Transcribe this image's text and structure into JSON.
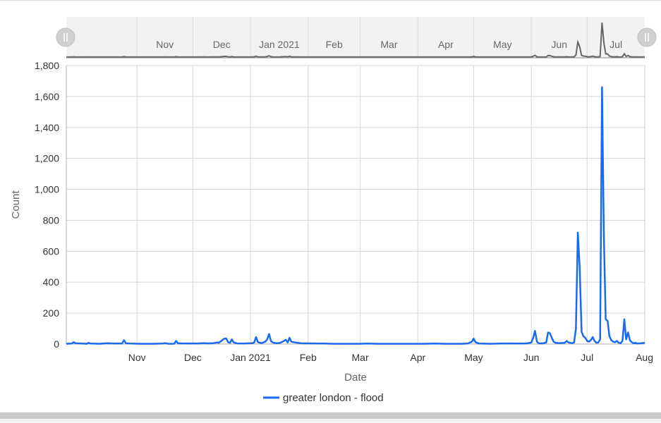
{
  "chart_data": {
    "type": "line",
    "title": "",
    "xlabel": "Date",
    "ylabel": "Count",
    "ylim": [
      0,
      1800
    ],
    "xlim": [
      "2020-09-24",
      "2021-08-01"
    ],
    "grid": true,
    "legend_position": "bottom-center",
    "yticks": [
      {
        "value": 0,
        "label": "0"
      },
      {
        "value": 200,
        "label": "200"
      },
      {
        "value": 400,
        "label": "400"
      },
      {
        "value": 600,
        "label": "600"
      },
      {
        "value": 800,
        "label": "800"
      },
      {
        "value": 1000,
        "label": "1,000"
      },
      {
        "value": 1200,
        "label": "1,200"
      },
      {
        "value": 1400,
        "label": "1,400"
      },
      {
        "value": 1600,
        "label": "1,600"
      },
      {
        "value": 1800,
        "label": "1,800"
      }
    ],
    "xticks": [
      {
        "date": "2020-11-01",
        "label": "Nov"
      },
      {
        "date": "2020-12-01",
        "label": "Dec"
      },
      {
        "date": "2021-01-01",
        "label": "Jan 2021"
      },
      {
        "date": "2021-02-01",
        "label": "Feb"
      },
      {
        "date": "2021-03-01",
        "label": "Mar"
      },
      {
        "date": "2021-04-01",
        "label": "Apr"
      },
      {
        "date": "2021-05-01",
        "label": "May"
      },
      {
        "date": "2021-06-01",
        "label": "Jun"
      },
      {
        "date": "2021-07-01",
        "label": "Jul"
      },
      {
        "date": "2021-08-01",
        "label": "Aug"
      }
    ],
    "navigator": {
      "labels": [
        "Nov",
        "Dec",
        "Jan 2021",
        "Feb",
        "Mar",
        "Apr",
        "May",
        "Jun",
        "Jul"
      ],
      "line_color": "#666666"
    },
    "series": [
      {
        "name": "greater london - flood",
        "color": "#1a6af0",
        "points": [
          [
            "2020-09-24",
            2
          ],
          [
            "2020-09-27",
            3
          ],
          [
            "2020-09-28",
            12
          ],
          [
            "2020-09-29",
            5
          ],
          [
            "2020-10-02",
            3
          ],
          [
            "2020-10-05",
            2
          ],
          [
            "2020-10-06",
            8
          ],
          [
            "2020-10-07",
            3
          ],
          [
            "2020-10-12",
            2
          ],
          [
            "2020-10-16",
            5
          ],
          [
            "2020-10-20",
            3
          ],
          [
            "2020-10-24",
            3
          ],
          [
            "2020-10-25",
            25
          ],
          [
            "2020-10-26",
            5
          ],
          [
            "2020-10-28",
            3
          ],
          [
            "2020-11-03",
            2
          ],
          [
            "2020-11-10",
            2
          ],
          [
            "2020-11-15",
            3
          ],
          [
            "2020-11-16",
            6
          ],
          [
            "2020-11-18",
            2
          ],
          [
            "2020-11-21",
            2
          ],
          [
            "2020-11-22",
            20
          ],
          [
            "2020-11-23",
            5
          ],
          [
            "2020-11-26",
            3
          ],
          [
            "2020-11-30",
            4
          ],
          [
            "2020-12-03",
            3
          ],
          [
            "2020-12-07",
            6
          ],
          [
            "2020-12-09",
            4
          ],
          [
            "2020-12-12",
            6
          ],
          [
            "2020-12-14",
            10
          ],
          [
            "2020-12-15",
            8
          ],
          [
            "2020-12-18",
            35
          ],
          [
            "2020-12-19",
            35
          ],
          [
            "2020-12-20",
            12
          ],
          [
            "2020-12-21",
            8
          ],
          [
            "2020-12-22",
            30
          ],
          [
            "2020-12-23",
            10
          ],
          [
            "2020-12-25",
            4
          ],
          [
            "2020-12-28",
            3
          ],
          [
            "2021-01-02",
            6
          ],
          [
            "2021-01-03",
            10
          ],
          [
            "2021-01-04",
            45
          ],
          [
            "2021-01-05",
            12
          ],
          [
            "2021-01-07",
            6
          ],
          [
            "2021-01-09",
            15
          ],
          [
            "2021-01-10",
            30
          ],
          [
            "2021-01-11",
            65
          ],
          [
            "2021-01-12",
            20
          ],
          [
            "2021-01-13",
            10
          ],
          [
            "2021-01-15",
            5
          ],
          [
            "2021-01-17",
            8
          ],
          [
            "2021-01-19",
            20
          ],
          [
            "2021-01-20",
            28
          ],
          [
            "2021-01-21",
            10
          ],
          [
            "2021-01-22",
            40
          ],
          [
            "2021-01-23",
            15
          ],
          [
            "2021-01-25",
            10
          ],
          [
            "2021-01-28",
            5
          ],
          [
            "2021-02-02",
            4
          ],
          [
            "2021-02-07",
            3
          ],
          [
            "2021-02-10",
            3
          ],
          [
            "2021-02-14",
            2
          ],
          [
            "2021-02-20",
            2
          ],
          [
            "2021-02-25",
            2
          ],
          [
            "2021-03-01",
            2
          ],
          [
            "2021-03-05",
            3
          ],
          [
            "2021-03-10",
            2
          ],
          [
            "2021-03-15",
            2
          ],
          [
            "2021-03-20",
            2
          ],
          [
            "2021-03-25",
            2
          ],
          [
            "2021-03-30",
            2
          ],
          [
            "2021-04-05",
            2
          ],
          [
            "2021-04-10",
            3
          ],
          [
            "2021-04-15",
            2
          ],
          [
            "2021-04-20",
            2
          ],
          [
            "2021-04-25",
            2
          ],
          [
            "2021-04-28",
            4
          ],
          [
            "2021-04-30",
            15
          ],
          [
            "2021-05-01",
            35
          ],
          [
            "2021-05-02",
            12
          ],
          [
            "2021-05-04",
            3
          ],
          [
            "2021-05-10",
            2
          ],
          [
            "2021-05-15",
            3
          ],
          [
            "2021-05-20",
            4
          ],
          [
            "2021-05-25",
            3
          ],
          [
            "2021-05-28",
            3
          ],
          [
            "2021-05-30",
            5
          ],
          [
            "2021-06-01",
            10
          ],
          [
            "2021-06-02",
            40
          ],
          [
            "2021-06-03",
            85
          ],
          [
            "2021-06-04",
            15
          ],
          [
            "2021-06-05",
            5
          ],
          [
            "2021-06-07",
            4
          ],
          [
            "2021-06-09",
            10
          ],
          [
            "2021-06-10",
            75
          ],
          [
            "2021-06-11",
            70
          ],
          [
            "2021-06-12",
            40
          ],
          [
            "2021-06-13",
            15
          ],
          [
            "2021-06-14",
            8
          ],
          [
            "2021-06-16",
            6
          ],
          [
            "2021-06-19",
            8
          ],
          [
            "2021-06-20",
            20
          ],
          [
            "2021-06-21",
            10
          ],
          [
            "2021-06-23",
            6
          ],
          [
            "2021-06-24",
            10
          ],
          [
            "2021-06-25",
            100
          ],
          [
            "2021-06-26",
            720
          ],
          [
            "2021-06-27",
            500
          ],
          [
            "2021-06-28",
            80
          ],
          [
            "2021-06-29",
            50
          ],
          [
            "2021-06-30",
            40
          ],
          [
            "2021-07-01",
            20
          ],
          [
            "2021-07-02",
            15
          ],
          [
            "2021-07-03",
            25
          ],
          [
            "2021-07-04",
            45
          ],
          [
            "2021-07-05",
            20
          ],
          [
            "2021-07-06",
            8
          ],
          [
            "2021-07-07",
            10
          ],
          [
            "2021-07-08",
            30
          ],
          [
            "2021-07-09",
            1660
          ],
          [
            "2021-07-10",
            700
          ],
          [
            "2021-07-11",
            160
          ],
          [
            "2021-07-12",
            150
          ],
          [
            "2021-07-13",
            50
          ],
          [
            "2021-07-14",
            25
          ],
          [
            "2021-07-15",
            15
          ],
          [
            "2021-07-16",
            12
          ],
          [
            "2021-07-17",
            20
          ],
          [
            "2021-07-18",
            8
          ],
          [
            "2021-07-19",
            5
          ],
          [
            "2021-07-20",
            20
          ],
          [
            "2021-07-21",
            160
          ],
          [
            "2021-07-22",
            30
          ],
          [
            "2021-07-23",
            75
          ],
          [
            "2021-07-24",
            25
          ],
          [
            "2021-07-25",
            12
          ],
          [
            "2021-07-26",
            5
          ],
          [
            "2021-07-27",
            8
          ],
          [
            "2021-07-28",
            3
          ],
          [
            "2021-07-30",
            5
          ],
          [
            "2021-08-01",
            8
          ]
        ]
      }
    ]
  }
}
